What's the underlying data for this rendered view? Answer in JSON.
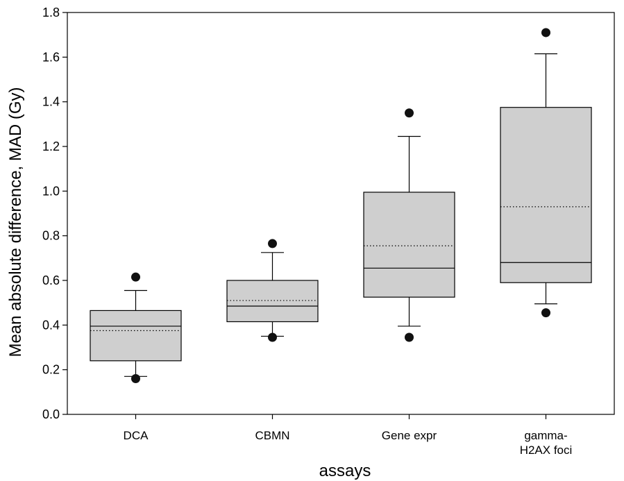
{
  "chart_data": {
    "type": "box",
    "title": "",
    "xlabel": "assays",
    "ylabel": "Mean absolute difference, MAD (Gy)",
    "ylim": [
      0,
      1.8
    ],
    "yticks": [
      "0.0",
      "0.2",
      "0.4",
      "0.6",
      "0.8",
      "1.0",
      "1.2",
      "1.4",
      "1.6",
      "1.8"
    ],
    "grid": false,
    "categories": [
      {
        "label_lines": [
          "DCA"
        ],
        "q1": 0.24,
        "median": 0.395,
        "q3": 0.465,
        "mean": 0.375,
        "whisker_low": 0.17,
        "whisker_high": 0.555,
        "outliers": [
          0.615,
          0.16
        ]
      },
      {
        "label_lines": [
          "CBMN"
        ],
        "q1": 0.415,
        "median": 0.485,
        "q3": 0.6,
        "mean": 0.51,
        "whisker_low": 0.35,
        "whisker_high": 0.725,
        "outliers": [
          0.765,
          0.345
        ]
      },
      {
        "label_lines": [
          "Gene expr"
        ],
        "q1": 0.525,
        "median": 0.655,
        "q3": 0.995,
        "mean": 0.755,
        "whisker_low": 0.395,
        "whisker_high": 1.245,
        "outliers": [
          1.35,
          0.345
        ]
      },
      {
        "label_lines": [
          "gamma-",
          "H2AX foci"
        ],
        "q1": 0.59,
        "median": 0.68,
        "q3": 1.375,
        "mean": 0.93,
        "whisker_low": 0.495,
        "whisker_high": 1.615,
        "outliers": [
          1.71,
          0.455
        ]
      }
    ]
  }
}
